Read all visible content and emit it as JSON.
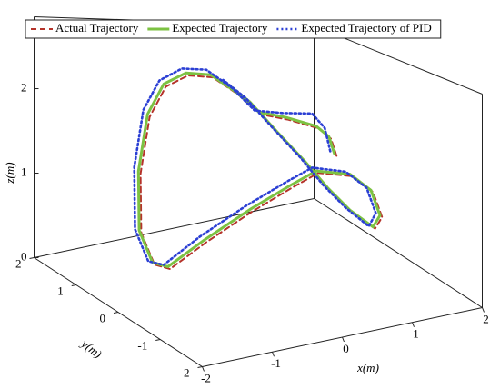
{
  "chart_data": {
    "type": "line3d",
    "xlabel": "x(m)",
    "ylabel": "y(m)",
    "zlabel": "z(m)",
    "xlim": [
      -2,
      2
    ],
    "ylim": [
      -2,
      2
    ],
    "zlim": [
      0,
      2.85
    ],
    "xticks": [
      -2,
      -1,
      0,
      1,
      2
    ],
    "yticks": [
      -2,
      -1,
      0,
      1,
      2
    ],
    "zticks": [
      0,
      1,
      2
    ],
    "legend": "top",
    "series": [
      {
        "name": "Actual Trajectory",
        "color": "#b5332a",
        "style": "dashed",
        "x": [
          1.12,
          1.04,
          0.86,
          0.43,
          0.04,
          -0.28,
          -0.65,
          -1.0,
          -1.32,
          -1.55,
          -1.68,
          -1.67,
          -1.48,
          -1.26,
          -0.74,
          -0.09,
          0.5,
          0.86,
          1.34,
          1.64,
          1.77,
          1.67,
          1.34,
          1.02,
          0.69,
          0.3,
          -0.09,
          -0.41
        ],
        "y": [
          0,
          0,
          0,
          0,
          0,
          0,
          0,
          0,
          0,
          0,
          0,
          0,
          0,
          0,
          0,
          0,
          0,
          0,
          0,
          0,
          0,
          0,
          0,
          0,
          0,
          0,
          0,
          0
        ],
        "z": [
          1.51,
          1.75,
          1.9,
          2.03,
          2.11,
          2.36,
          2.57,
          2.59,
          2.46,
          2.12,
          1.49,
          0.83,
          0.45,
          0.37,
          0.61,
          0.9,
          1.15,
          1.3,
          1.21,
          0.95,
          0.57,
          0.42,
          0.71,
          1.06,
          1.45,
          1.85,
          2.24,
          2.46
        ]
      },
      {
        "name": "Expected Trajectory",
        "color": "#7cc242",
        "style": "solid",
        "x": [
          1.09,
          1.01,
          0.83,
          0.4,
          0.01,
          -0.31,
          -0.68,
          -1.03,
          -1.35,
          -1.58,
          -1.71,
          -1.7,
          -1.51,
          -1.29,
          -0.77,
          -0.12,
          0.47,
          0.83,
          1.31,
          1.61,
          1.74,
          1.64,
          1.31,
          0.99,
          0.66,
          0.27,
          -0.12,
          -0.44
        ],
        "y": [
          0,
          0,
          0,
          0,
          0,
          0,
          0,
          0,
          0,
          0,
          0,
          0,
          0,
          0,
          0,
          0,
          0,
          0,
          0,
          0,
          0,
          0,
          0,
          0,
          0,
          0,
          0,
          0
        ],
        "z": [
          1.54,
          1.78,
          1.93,
          2.06,
          2.14,
          2.39,
          2.6,
          2.62,
          2.49,
          2.15,
          1.52,
          0.86,
          0.48,
          0.4,
          0.64,
          0.93,
          1.18,
          1.33,
          1.24,
          0.98,
          0.6,
          0.45,
          0.74,
          1.09,
          1.48,
          1.88,
          2.27,
          2.49
        ]
      },
      {
        "name": "Expected Trajectory of PID",
        "color": "#2b3fd4",
        "style": "dotted",
        "x": [
          1.03,
          0.95,
          0.77,
          0.34,
          -0.05,
          -0.37,
          -0.74,
          -1.09,
          -1.41,
          -1.64,
          -1.77,
          -1.76,
          -1.57,
          -1.35,
          -0.83,
          -0.18,
          0.41,
          0.77,
          1.25,
          1.55,
          1.68,
          1.58,
          1.25,
          0.93,
          0.6,
          0.21,
          -0.18,
          -0.5
        ],
        "y": [
          0,
          0,
          0,
          0,
          0,
          0,
          0,
          0,
          0,
          0,
          0,
          0,
          0,
          0,
          0,
          0,
          0,
          0,
          0,
          0,
          0,
          0,
          0,
          0,
          0,
          0,
          0,
          0
        ],
        "z": [
          1.58,
          1.9,
          2.1,
          2.12,
          2.16,
          2.44,
          2.66,
          2.67,
          2.53,
          2.2,
          1.57,
          0.88,
          0.5,
          0.43,
          0.69,
          0.98,
          1.23,
          1.38,
          1.28,
          1.02,
          0.64,
          0.47,
          0.78,
          1.13,
          1.53,
          1.93,
          2.32,
          2.54
        ]
      }
    ]
  }
}
